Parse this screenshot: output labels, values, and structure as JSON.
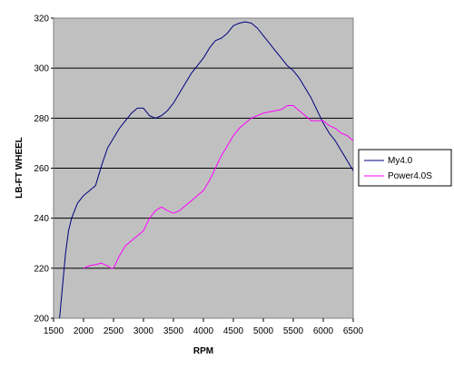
{
  "chart_data": {
    "type": "line",
    "title": "",
    "xlabel": "RPM",
    "ylabel": "LB-FT WHEEL",
    "xlim": [
      1500,
      6500
    ],
    "ylim": [
      200,
      320
    ],
    "xticks": [
      1500,
      2000,
      2500,
      3000,
      3500,
      4000,
      4500,
      5000,
      5500,
      6000,
      6500
    ],
    "yticks": [
      200,
      220,
      240,
      260,
      280,
      300,
      320
    ],
    "grid": "horizontal",
    "plot_background": "#c0c0c0",
    "legend_position": "right",
    "series": [
      {
        "name": "My4.0",
        "color": "#000080",
        "x": [
          1600,
          1650,
          1700,
          1750,
          1800,
          1900,
          2000,
          2100,
          2200,
          2300,
          2400,
          2500,
          2600,
          2700,
          2800,
          2900,
          3000,
          3100,
          3200,
          3300,
          3400,
          3500,
          3600,
          3700,
          3800,
          3900,
          4000,
          4100,
          4200,
          4300,
          4400,
          4500,
          4600,
          4700,
          4800,
          4900,
          5000,
          5100,
          5200,
          5300,
          5400,
          5500,
          5600,
          5700,
          5800,
          5900,
          6000,
          6100,
          6200,
          6300,
          6400,
          6500
        ],
        "values": [
          200,
          213,
          226,
          235,
          240,
          246,
          249,
          251,
          253,
          261,
          268,
          272,
          276,
          279,
          282,
          284,
          284,
          281,
          280,
          281,
          283,
          286,
          290,
          294,
          298,
          301,
          304,
          308,
          311,
          312,
          314,
          317,
          318,
          318.5,
          318,
          316,
          313,
          310,
          307,
          304,
          301,
          299,
          296,
          292,
          288,
          283,
          278,
          274,
          271,
          267,
          263,
          259
        ]
      },
      {
        "name": "Power4.0S",
        "color": "#ff00ff",
        "x": [
          2000,
          2100,
          2200,
          2300,
          2400,
          2450,
          2500,
          2600,
          2700,
          2800,
          2900,
          3000,
          3100,
          3200,
          3300,
          3400,
          3500,
          3600,
          3700,
          3800,
          3900,
          4000,
          4100,
          4200,
          4300,
          4400,
          4500,
          4600,
          4700,
          4800,
          4900,
          5000,
          5100,
          5200,
          5300,
          5400,
          5500,
          5600,
          5700,
          5800,
          5900,
          6000,
          6100,
          6200,
          6300,
          6400,
          6500
        ],
        "values": [
          220,
          221,
          221.5,
          222,
          221,
          220,
          220,
          225,
          229,
          231,
          233,
          235,
          240,
          243,
          244.5,
          243,
          242,
          243,
          245,
          247,
          249,
          251,
          255,
          260,
          265,
          269,
          273,
          276,
          278,
          280,
          281,
          282,
          282.5,
          283,
          283.5,
          285,
          285,
          283,
          281,
          279,
          279,
          279,
          277,
          276,
          274,
          273,
          271
        ]
      }
    ]
  }
}
